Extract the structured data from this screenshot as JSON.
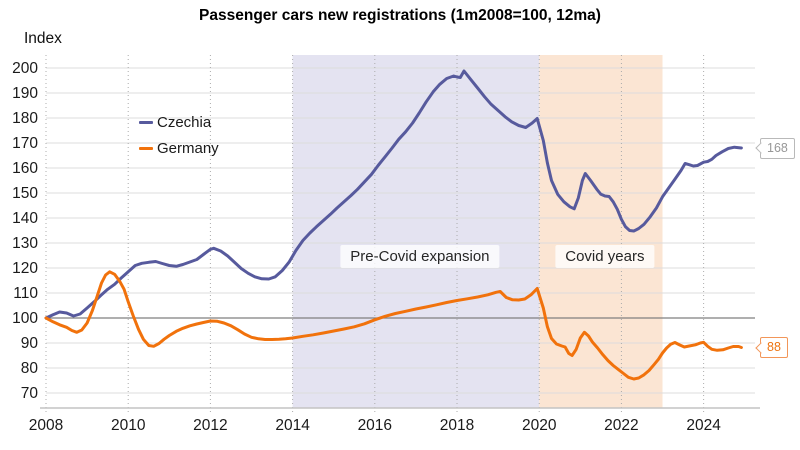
{
  "title": "Passenger cars new registrations (1m2008=100, 12ma)",
  "y_axis_label": "Index",
  "colors": {
    "czechia": "#575a9d",
    "germany": "#f1720c",
    "precovid_band": "#e4e3f1",
    "covid_band": "#fbe5d3",
    "grid": "#dcdcdc",
    "baseline": "#7f7f7f",
    "tick_dots": "#acacac",
    "axis_line": "#c3c3c3",
    "text": "#1a1a1a"
  },
  "chart_data": {
    "type": "line",
    "title": "Passenger cars new registrations (1m2008=100, 12ma)",
    "xlabel": "",
    "ylabel": "Index",
    "xlim": [
      2008,
      2025.25
    ],
    "ylim": [
      64,
      205
    ],
    "x_ticks": [
      2008,
      2010,
      2012,
      2014,
      2016,
      2018,
      2020,
      2022,
      2024
    ],
    "y_ticks": [
      70,
      80,
      90,
      100,
      110,
      120,
      130,
      140,
      150,
      160,
      170,
      180,
      190,
      200
    ],
    "baseline": 100,
    "grid": true,
    "legend_position": "upper-left-inside",
    "regions": [
      {
        "label": "Pre-Covid expansion",
        "from": 2014,
        "to": 2020,
        "color": "#e4e3f1"
      },
      {
        "label": "Covid years",
        "from": 2020,
        "to": 2023,
        "color": "#fbe5d3"
      }
    ],
    "series": [
      {
        "name": "Czechia",
        "color": "#575a9d",
        "end_label": "168",
        "points": [
          [
            2008.0,
            100
          ],
          [
            2008.17,
            101.3
          ],
          [
            2008.33,
            102.4
          ],
          [
            2008.5,
            102
          ],
          [
            2008.67,
            100.8
          ],
          [
            2008.83,
            101.6
          ],
          [
            2009.0,
            104
          ],
          [
            2009.17,
            106.5
          ],
          [
            2009.33,
            109
          ],
          [
            2009.5,
            111.5
          ],
          [
            2009.67,
            113.5
          ],
          [
            2009.83,
            116
          ],
          [
            2010.0,
            118.5
          ],
          [
            2010.17,
            121
          ],
          [
            2010.33,
            121.9
          ],
          [
            2010.5,
            122.3
          ],
          [
            2010.67,
            122.6
          ],
          [
            2010.83,
            121.8
          ],
          [
            2011.0,
            121
          ],
          [
            2011.17,
            120.7
          ],
          [
            2011.33,
            121.4
          ],
          [
            2011.5,
            122.4
          ],
          [
            2011.67,
            123.4
          ],
          [
            2011.83,
            125.4
          ],
          [
            2012.0,
            127.5
          ],
          [
            2012.08,
            127.9
          ],
          [
            2012.25,
            126.8
          ],
          [
            2012.42,
            124.8
          ],
          [
            2012.58,
            122.4
          ],
          [
            2012.75,
            119.8
          ],
          [
            2012.92,
            117.9
          ],
          [
            2013.08,
            116.5
          ],
          [
            2013.25,
            115.7
          ],
          [
            2013.42,
            115.6
          ],
          [
            2013.58,
            116.5
          ],
          [
            2013.75,
            119
          ],
          [
            2013.92,
            122.5
          ],
          [
            2014.08,
            127
          ],
          [
            2014.25,
            131
          ],
          [
            2014.42,
            134
          ],
          [
            2014.58,
            136.5
          ],
          [
            2014.75,
            139
          ],
          [
            2014.92,
            141.5
          ],
          [
            2015.08,
            144
          ],
          [
            2015.25,
            146.5
          ],
          [
            2015.42,
            149
          ],
          [
            2015.58,
            151.5
          ],
          [
            2015.75,
            154.5
          ],
          [
            2015.92,
            157.5
          ],
          [
            2016.08,
            161
          ],
          [
            2016.25,
            164.5
          ],
          [
            2016.42,
            168
          ],
          [
            2016.58,
            171.5
          ],
          [
            2016.75,
            174.5
          ],
          [
            2016.92,
            178
          ],
          [
            2017.08,
            182
          ],
          [
            2017.25,
            186.5
          ],
          [
            2017.42,
            190.5
          ],
          [
            2017.58,
            193.5
          ],
          [
            2017.75,
            195.8
          ],
          [
            2017.92,
            196.8
          ],
          [
            2018.0,
            196.4
          ],
          [
            2018.08,
            196.2
          ],
          [
            2018.17,
            198.8
          ],
          [
            2018.33,
            195.5
          ],
          [
            2018.5,
            192
          ],
          [
            2018.67,
            188.5
          ],
          [
            2018.83,
            185.5
          ],
          [
            2019.0,
            183
          ],
          [
            2019.17,
            180.5
          ],
          [
            2019.33,
            178.5
          ],
          [
            2019.5,
            177
          ],
          [
            2019.67,
            176.2
          ],
          [
            2019.83,
            178
          ],
          [
            2019.95,
            179.8
          ],
          [
            2020.1,
            171
          ],
          [
            2020.2,
            162
          ],
          [
            2020.3,
            155
          ],
          [
            2020.45,
            149.5
          ],
          [
            2020.6,
            146.5
          ],
          [
            2020.75,
            144.5
          ],
          [
            2020.85,
            143.7
          ],
          [
            2020.95,
            148
          ],
          [
            2021.05,
            155
          ],
          [
            2021.12,
            157.8
          ],
          [
            2021.25,
            155
          ],
          [
            2021.4,
            151.5
          ],
          [
            2021.5,
            149.5
          ],
          [
            2021.6,
            148.8
          ],
          [
            2021.7,
            148.6
          ],
          [
            2021.8,
            146.5
          ],
          [
            2021.9,
            143.5
          ],
          [
            2022.0,
            139.5
          ],
          [
            2022.1,
            136.5
          ],
          [
            2022.2,
            135
          ],
          [
            2022.3,
            134.8
          ],
          [
            2022.42,
            135.8
          ],
          [
            2022.55,
            137.5
          ],
          [
            2022.7,
            140.5
          ],
          [
            2022.85,
            144
          ],
          [
            2023.0,
            148.5
          ],
          [
            2023.15,
            152
          ],
          [
            2023.3,
            155.5
          ],
          [
            2023.45,
            159
          ],
          [
            2023.55,
            161.8
          ],
          [
            2023.65,
            161.3
          ],
          [
            2023.75,
            160.8
          ],
          [
            2023.85,
            161
          ],
          [
            2024.0,
            162.3
          ],
          [
            2024.1,
            162.6
          ],
          [
            2024.2,
            163.5
          ],
          [
            2024.3,
            165
          ],
          [
            2024.45,
            166.5
          ],
          [
            2024.6,
            167.8
          ],
          [
            2024.75,
            168.3
          ],
          [
            2024.92,
            168
          ]
        ]
      },
      {
        "name": "Germany",
        "color": "#f1720c",
        "end_label": "88",
        "points": [
          [
            2008.0,
            100
          ],
          [
            2008.17,
            98.5
          ],
          [
            2008.33,
            97.3
          ],
          [
            2008.5,
            96.3
          ],
          [
            2008.63,
            95
          ],
          [
            2008.75,
            94.3
          ],
          [
            2008.87,
            95.2
          ],
          [
            2009.0,
            98
          ],
          [
            2009.13,
            103
          ],
          [
            2009.25,
            109
          ],
          [
            2009.35,
            114
          ],
          [
            2009.45,
            117.2
          ],
          [
            2009.55,
            118.5
          ],
          [
            2009.67,
            117.5
          ],
          [
            2009.8,
            114.5
          ],
          [
            2009.9,
            111.5
          ],
          [
            2010.0,
            106.5
          ],
          [
            2010.12,
            101
          ],
          [
            2010.25,
            95.5
          ],
          [
            2010.37,
            91.5
          ],
          [
            2010.5,
            89
          ],
          [
            2010.62,
            88.7
          ],
          [
            2010.75,
            89.8
          ],
          [
            2010.87,
            91.5
          ],
          [
            2011.0,
            93
          ],
          [
            2011.17,
            94.7
          ],
          [
            2011.33,
            95.9
          ],
          [
            2011.5,
            96.9
          ],
          [
            2011.67,
            97.6
          ],
          [
            2011.83,
            98.2
          ],
          [
            2012.0,
            98.8
          ],
          [
            2012.17,
            98.7
          ],
          [
            2012.33,
            98
          ],
          [
            2012.5,
            96.9
          ],
          [
            2012.67,
            95.3
          ],
          [
            2012.83,
            93.6
          ],
          [
            2013.0,
            92.3
          ],
          [
            2013.17,
            91.7
          ],
          [
            2013.33,
            91.4
          ],
          [
            2013.5,
            91.4
          ],
          [
            2013.67,
            91.5
          ],
          [
            2013.83,
            91.7
          ],
          [
            2014.0,
            92
          ],
          [
            2014.25,
            92.7
          ],
          [
            2014.5,
            93.3
          ],
          [
            2014.75,
            94
          ],
          [
            2015.0,
            94.8
          ],
          [
            2015.25,
            95.6
          ],
          [
            2015.5,
            96.5
          ],
          [
            2015.75,
            97.7
          ],
          [
            2016.0,
            99.3
          ],
          [
            2016.25,
            100.7
          ],
          [
            2016.5,
            101.8
          ],
          [
            2016.75,
            102.7
          ],
          [
            2017.0,
            103.6
          ],
          [
            2017.25,
            104.4
          ],
          [
            2017.5,
            105.3
          ],
          [
            2017.75,
            106.2
          ],
          [
            2018.0,
            107
          ],
          [
            2018.25,
            107.7
          ],
          [
            2018.5,
            108.4
          ],
          [
            2018.75,
            109.3
          ],
          [
            2018.95,
            110.3
          ],
          [
            2019.05,
            110.6
          ],
          [
            2019.2,
            108.2
          ],
          [
            2019.35,
            107.3
          ],
          [
            2019.5,
            107.2
          ],
          [
            2019.65,
            107.6
          ],
          [
            2019.8,
            109.3
          ],
          [
            2019.95,
            111.8
          ],
          [
            2020.1,
            104
          ],
          [
            2020.2,
            96.5
          ],
          [
            2020.3,
            91.8
          ],
          [
            2020.42,
            89.6
          ],
          [
            2020.55,
            88.8
          ],
          [
            2020.63,
            88.4
          ],
          [
            2020.72,
            85.8
          ],
          [
            2020.8,
            85
          ],
          [
            2020.9,
            87.5
          ],
          [
            2021.0,
            92
          ],
          [
            2021.1,
            94.3
          ],
          [
            2021.2,
            92.8
          ],
          [
            2021.3,
            90.3
          ],
          [
            2021.42,
            88
          ],
          [
            2021.55,
            85.3
          ],
          [
            2021.67,
            83
          ],
          [
            2021.8,
            81
          ],
          [
            2021.92,
            79.5
          ],
          [
            2022.05,
            77.8
          ],
          [
            2022.17,
            76.3
          ],
          [
            2022.3,
            75.6
          ],
          [
            2022.42,
            76
          ],
          [
            2022.55,
            77.3
          ],
          [
            2022.67,
            79
          ],
          [
            2022.8,
            81.5
          ],
          [
            2022.9,
            83.5
          ],
          [
            2023.0,
            86
          ],
          [
            2023.1,
            88
          ],
          [
            2023.2,
            89.5
          ],
          [
            2023.3,
            90.2
          ],
          [
            2023.42,
            89.2
          ],
          [
            2023.53,
            88.4
          ],
          [
            2023.65,
            88.8
          ],
          [
            2023.8,
            89.3
          ],
          [
            2023.92,
            90
          ],
          [
            2024.0,
            90.3
          ],
          [
            2024.1,
            88.7
          ],
          [
            2024.2,
            87.5
          ],
          [
            2024.33,
            87.1
          ],
          [
            2024.47,
            87.3
          ],
          [
            2024.6,
            88
          ],
          [
            2024.72,
            88.6
          ],
          [
            2024.85,
            88.6
          ],
          [
            2024.92,
            88.2
          ]
        ]
      }
    ]
  }
}
